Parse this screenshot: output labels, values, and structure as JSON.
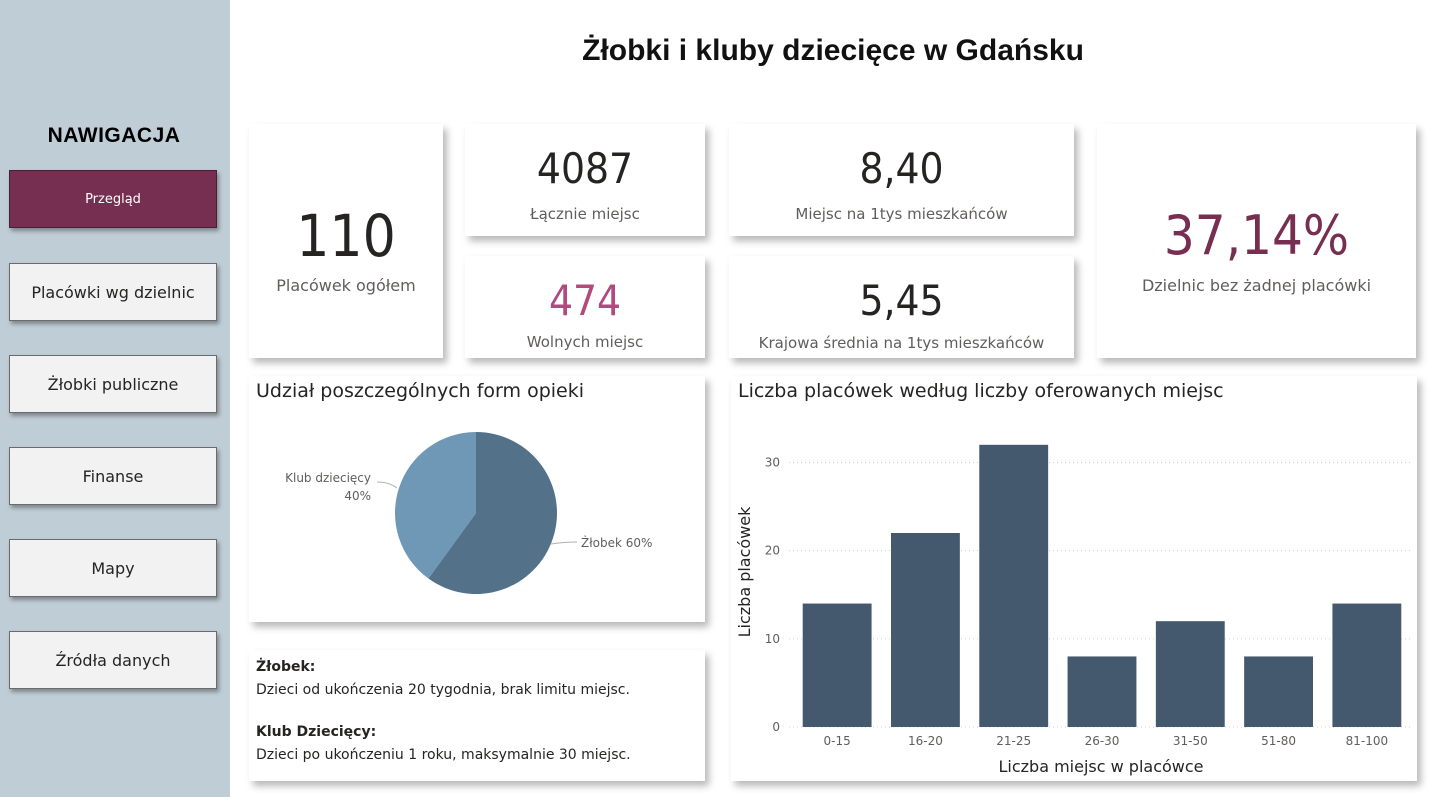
{
  "page_title": "Żłobki i kluby dziecięce w Gdańsku",
  "navigation": {
    "title": "NAWIGACJA",
    "items": [
      {
        "label": "Przegląd",
        "active": true
      },
      {
        "label": "Placówki wg dzielnic",
        "active": false
      },
      {
        "label": "Żłobki publiczne",
        "active": false
      },
      {
        "label": "Finanse",
        "active": false
      },
      {
        "label": "Mapy",
        "active": false
      },
      {
        "label": "Źródła danych",
        "active": false
      }
    ]
  },
  "kpis": {
    "total_facilities": {
      "value": "110",
      "label": "Placówek ogółem"
    },
    "total_places": {
      "value": "4087",
      "label": "Łącznie miejsc"
    },
    "places_per_1000": {
      "value": "8,40",
      "label": "Miejsc na 1tys mieszkańców"
    },
    "districts_without": {
      "value": "37,14%",
      "label": "Dzielnic bez żadnej placówki"
    },
    "free_places": {
      "value": "474",
      "label": "Wolnych miejsc"
    },
    "national_avg": {
      "value": "5,45",
      "label": "Krajowa średnia na 1tys mieszkańców"
    }
  },
  "colors": {
    "nav_active": "#772f51",
    "accent": "#b04a7f",
    "accent_dark": "#772f51",
    "bar": "#44596d",
    "pie_zlobek": "#53728a",
    "pie_klub": "#6f97b6",
    "sidebar_bg": "#bfcdd6"
  },
  "descriptions": [
    {
      "heading": "Żłobek:",
      "text": "Dzieci od ukończenia 20 tygodnia, brak limitu miejsc."
    },
    {
      "heading": "Klub Dziecięcy:",
      "text": "Dzieci po ukończeniu 1 roku, maksymalnie 30 miejsc."
    }
  ],
  "chart_data": [
    {
      "type": "pie",
      "title": "Udział poszczególnych form opieki",
      "slices": [
        {
          "name": "Żłobek",
          "value": 60,
          "label": "Żłobek 60%"
        },
        {
          "name": "Klub dziecięcy",
          "value": 40,
          "label_line1": "Klub dziecięcy",
          "label_line2": "40%"
        }
      ]
    },
    {
      "type": "bar",
      "title": "Liczba placówek według liczby oferowanych miejsc",
      "xlabel": "Liczba miejsc w placówce",
      "ylabel": "Liczba placówek",
      "categories": [
        "0-15",
        "16-20",
        "21-25",
        "26-30",
        "31-50",
        "51-80",
        "81-100"
      ],
      "values": [
        14,
        22,
        32,
        8,
        12,
        8,
        14
      ],
      "yticks": [
        0,
        10,
        20,
        30
      ],
      "ylim": [
        0,
        33
      ],
      "grid": true
    }
  ]
}
